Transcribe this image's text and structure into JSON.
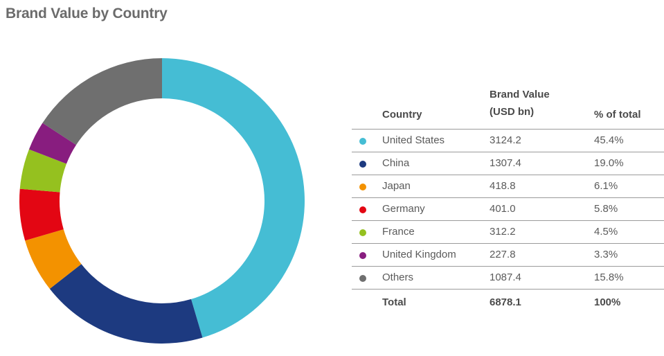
{
  "title": "Brand Value by Country",
  "table": {
    "headers": {
      "country": "Country",
      "value_line1": "Brand Value",
      "value_line2": "(USD bn)",
      "percent": "% of total"
    },
    "rows": [
      {
        "country": "United States",
        "value": "3124.2",
        "percent": "45.4%",
        "color": "#45bdd4"
      },
      {
        "country": "China",
        "value": "1307.4",
        "percent": "19.0%",
        "color": "#1d3a80"
      },
      {
        "country": "Japan",
        "value": "418.8",
        "percent": "6.1%",
        "color": "#f39200"
      },
      {
        "country": "Germany",
        "value": "401.0",
        "percent": "5.8%",
        "color": "#e30613"
      },
      {
        "country": "France",
        "value": "312.2",
        "percent": "4.5%",
        "color": "#95c11f"
      },
      {
        "country": "United Kingdom",
        "value": "227.8",
        "percent": "3.3%",
        "color": "#881d7f"
      },
      {
        "country": "Others",
        "value": "1087.4",
        "percent": "15.8%",
        "color": "#6f6f6f"
      }
    ],
    "total": {
      "label": "Total",
      "value": "6878.1",
      "percent": "100%"
    }
  },
  "chart_data": {
    "type": "pie",
    "variant": "donut",
    "title": "Brand Value by Country",
    "categories": [
      "United States",
      "China",
      "Japan",
      "Germany",
      "France",
      "United Kingdom",
      "Others"
    ],
    "values": [
      3124.2,
      1307.4,
      418.8,
      401.0,
      312.2,
      227.8,
      1087.4
    ],
    "percent": [
      45.4,
      19.0,
      6.1,
      5.8,
      4.5,
      3.3,
      15.8
    ],
    "colors": [
      "#45bdd4",
      "#1d3a80",
      "#f39200",
      "#e30613",
      "#95c11f",
      "#881d7f",
      "#6f6f6f"
    ],
    "start_angle": "12 o'clock, clockwise",
    "legend": "right (table)"
  }
}
